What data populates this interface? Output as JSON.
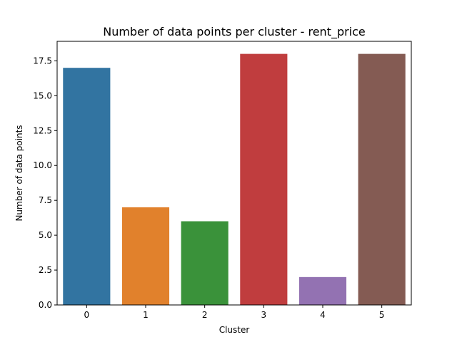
{
  "chart_data": {
    "type": "bar",
    "title": "Number of data points per cluster - rent_price",
    "xlabel": "Cluster",
    "ylabel": "Number of data points",
    "categories": [
      "0",
      "1",
      "2",
      "3",
      "4",
      "5"
    ],
    "values": [
      17,
      7,
      6,
      18,
      2,
      18
    ],
    "colors": [
      "#3274a1",
      "#e1812c",
      "#3a923a",
      "#c03d3e",
      "#9372b2",
      "#845b53"
    ],
    "ylim": [
      0,
      18.9
    ],
    "yticks": [
      "0.0",
      "2.5",
      "5.0",
      "7.5",
      "10.0",
      "12.5",
      "15.0",
      "17.5"
    ],
    "grid": false,
    "legend": "none"
  }
}
